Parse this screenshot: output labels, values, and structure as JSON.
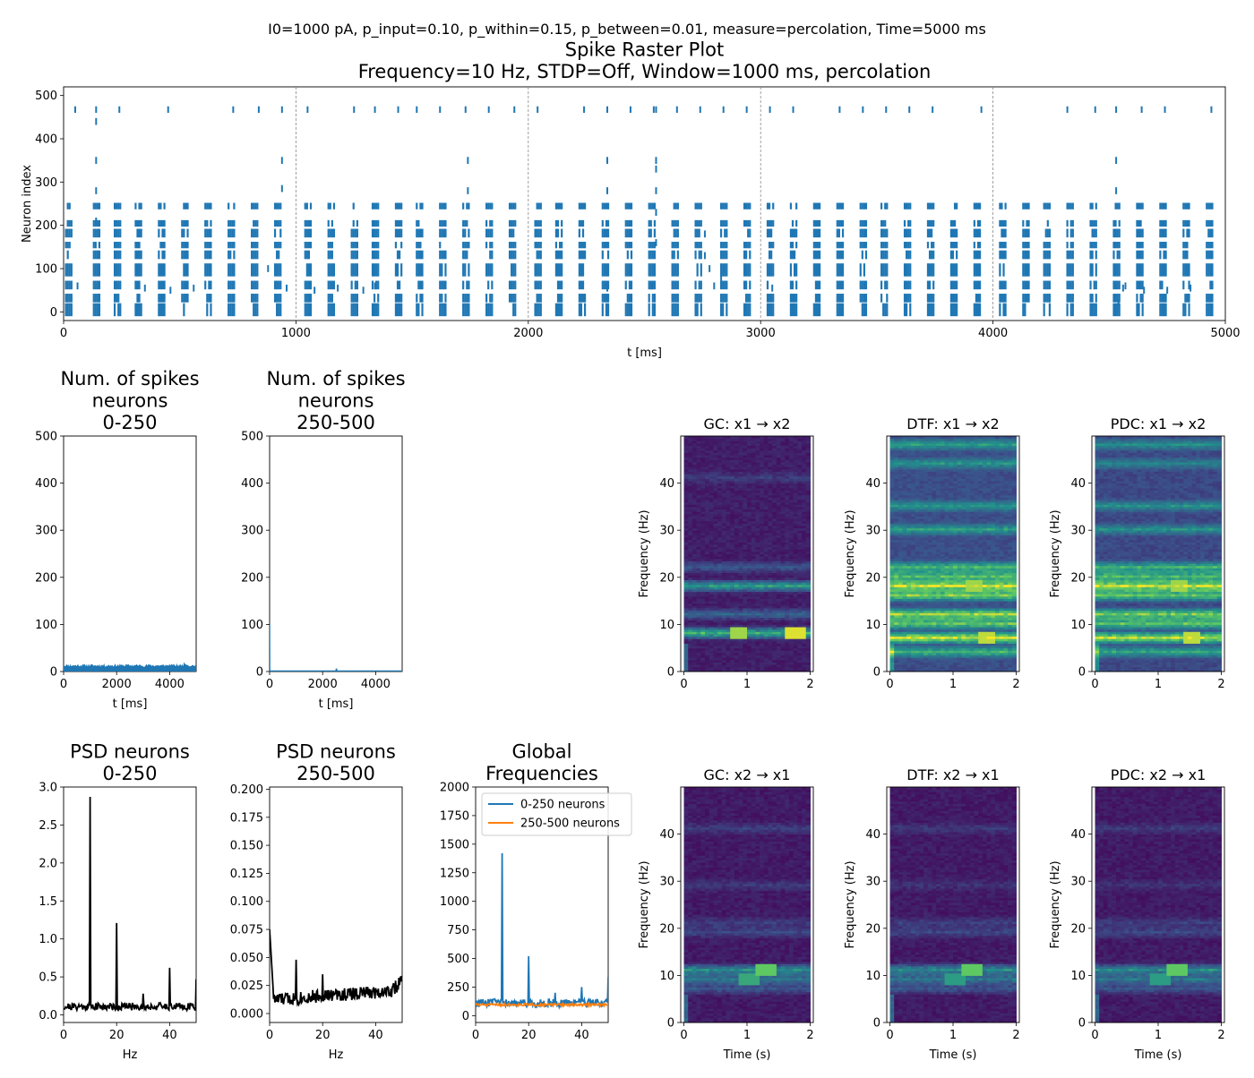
{
  "figure": {
    "suptitle": "I0=1000 pA, p_input=0.10, p_within=0.15, p_between=0.01, measure=percolation, Time=5000 ms"
  },
  "colors": {
    "blue": "#1f77b4",
    "orange": "#ff7f0e",
    "black": "#000000",
    "viridis": [
      "#440154",
      "#3b528b",
      "#21918c",
      "#5ec962",
      "#fde725"
    ]
  },
  "chart_data": [
    {
      "id": "raster",
      "type": "scatter",
      "title_line1": "Spike Raster Plot",
      "title_line2": "Frequency=10 Hz, STDP=Off, Window=1000 ms, percolation",
      "xlabel": "t [ms]",
      "ylabel": "Neuron index",
      "xlim": [
        0,
        5000
      ],
      "ylim": [
        -20,
        520
      ],
      "xticks": [
        0,
        1000,
        2000,
        3000,
        4000,
        5000
      ],
      "yticks": [
        0,
        100,
        200,
        300,
        400,
        500
      ],
      "vlines": [
        1000,
        2000,
        3000,
        4000
      ],
      "burst_times": [
        10,
        130,
        220,
        310,
        410,
        510,
        610,
        710,
        810,
        910,
        1040,
        1140,
        1240,
        1330,
        1430,
        1520,
        1620,
        1720,
        1820,
        1920,
        2030,
        2120,
        2220,
        2320,
        2420,
        2520,
        2620,
        2720,
        2830,
        2930,
        3030,
        3130,
        3230,
        3330,
        3430,
        3520,
        3620,
        3720,
        3820,
        3920,
        4030,
        4130,
        4220,
        4320,
        4420,
        4520,
        4620,
        4720,
        4820,
        4920
      ],
      "burst_ranges": [
        [
          -10,
          20
        ],
        [
          22,
          42
        ],
        [
          52,
          72
        ],
        [
          82,
          112
        ],
        [
          122,
          142
        ],
        [
          147,
          162
        ],
        [
          172,
          192
        ],
        [
          197,
          212
        ],
        [
          237,
          252
        ]
      ],
      "high_neuron_times": [
        50,
        140,
        240,
        450,
        730,
        840,
        940,
        1050,
        1250,
        1340,
        1440,
        1520,
        1620,
        1730,
        1830,
        1940,
        2040,
        2240,
        2340,
        2440,
        2540,
        2550,
        2640,
        2740,
        2840,
        2940,
        3040,
        3140,
        3340,
        3440,
        3540,
        3640,
        3740,
        3950,
        4320,
        4440,
        4530,
        4640,
        4740,
        4940
      ],
      "other_spikes": [
        [
          140,
          440
        ],
        [
          140,
          350
        ],
        [
          140,
          280
        ],
        [
          140,
          210
        ],
        [
          940,
          350
        ],
        [
          940,
          285
        ],
        [
          1740,
          350
        ],
        [
          1740,
          280
        ],
        [
          2340,
          350
        ],
        [
          2340,
          280
        ],
        [
          2550,
          350
        ],
        [
          2550,
          330
        ],
        [
          2550,
          280
        ],
        [
          2550,
          230
        ],
        [
          2550,
          160
        ],
        [
          4530,
          350
        ],
        [
          4530,
          280
        ],
        [
          60,
          60
        ],
        [
          350,
          55
        ],
        [
          460,
          50
        ],
        [
          560,
          55
        ],
        [
          880,
          100
        ],
        [
          960,
          55
        ],
        [
          1080,
          50
        ],
        [
          1180,
          55
        ],
        [
          1240,
          95
        ],
        [
          1290,
          50
        ],
        [
          1340,
          60
        ],
        [
          2340,
          100
        ],
        [
          2340,
          55
        ],
        [
          2530,
          60
        ],
        [
          2760,
          180
        ],
        [
          2760,
          130
        ],
        [
          2780,
          100
        ],
        [
          2800,
          60
        ],
        [
          2830,
          75
        ],
        [
          2840,
          100
        ],
        [
          3050,
          55
        ],
        [
          4540,
          20
        ],
        [
          4560,
          55
        ],
        [
          4570,
          60
        ],
        [
          4650,
          50
        ],
        [
          4750,
          50
        ],
        [
          4850,
          55
        ]
      ]
    },
    {
      "id": "spikes_0_250",
      "type": "area",
      "title_line1": "Num. of spikes",
      "title_line2": "neurons",
      "title_line3": "0-250",
      "xlabel": "t [ms]",
      "ylabel": "",
      "xlim": [
        0,
        5000
      ],
      "ylim": [
        0,
        500
      ],
      "xticks": [
        0,
        2000,
        4000
      ],
      "yticks": [
        0,
        100,
        200,
        300,
        400,
        500
      ],
      "baseline": 12,
      "amplitude": 3
    },
    {
      "id": "spikes_250_500",
      "type": "line",
      "title_line1": "Num. of spikes",
      "title_line2": "neurons",
      "title_line3": "250-500",
      "xlabel": "t [ms]",
      "ylabel": "",
      "xlim": [
        0,
        5000
      ],
      "ylim": [
        0,
        500
      ],
      "xticks": [
        0,
        2000,
        4000
      ],
      "yticks": [
        0,
        100,
        200,
        300,
        400,
        500
      ],
      "x": [
        0,
        5,
        10,
        2500,
        2520,
        2540,
        5000
      ],
      "y": [
        100,
        2,
        1,
        1,
        6,
        1,
        1
      ]
    },
    {
      "id": "psd_0_250",
      "type": "line",
      "title_line1": "PSD neurons",
      "title_line2": "0-250",
      "xlabel": "Hz",
      "ylabel": "",
      "xlim": [
        0,
        50
      ],
      "ylim": [
        -0.1,
        3.0
      ],
      "xticks": [
        0,
        20,
        40
      ],
      "yticks": [
        0.0,
        0.5,
        1.0,
        1.5,
        2.0,
        2.5,
        3.0
      ],
      "ytick_labels": [
        "0.0",
        "0.5",
        "1.0",
        "1.5",
        "2.0",
        "2.5",
        "3.0"
      ],
      "base": 0.11,
      "noise": 0.05,
      "peaks": [
        [
          10,
          2.87
        ],
        [
          20,
          1.21
        ],
        [
          30,
          0.28
        ],
        [
          40,
          0.62
        ],
        [
          50,
          0.47
        ]
      ]
    },
    {
      "id": "psd_250_500",
      "type": "line",
      "title_line1": "PSD neurons",
      "title_line2": "250-500",
      "xlabel": "Hz",
      "ylabel": "",
      "xlim": [
        0,
        50
      ],
      "ylim": [
        -0.008,
        0.202
      ],
      "xticks": [
        0,
        20,
        40
      ],
      "yticks": [
        0.0,
        0.025,
        0.05,
        0.075,
        0.1,
        0.125,
        0.15,
        0.175,
        0.2
      ],
      "ytick_labels": [
        "0.000",
        "0.025",
        "0.050",
        "0.075",
        "0.100",
        "0.125",
        "0.150",
        "0.175",
        "0.200"
      ],
      "start_value": 0.075,
      "noise": 0.006,
      "peaks": [
        [
          10,
          0.048
        ],
        [
          20,
          0.035
        ]
      ]
    },
    {
      "id": "global_freq",
      "type": "line",
      "title_line1": "Global",
      "title_line2": "Frequencies",
      "xlabel": "",
      "ylabel": "",
      "xlim": [
        0,
        50
      ],
      "ylim": [
        -60,
        2000
      ],
      "xticks": [
        0,
        20,
        40
      ],
      "yticks": [
        0,
        250,
        500,
        750,
        1000,
        1250,
        1500,
        1750,
        2000
      ],
      "legend_position": "upper right",
      "series": [
        {
          "name": "0-250 neurons",
          "base": 110,
          "noise": 35,
          "peaks": [
            [
              10,
              1420
            ],
            [
              20,
              520
            ],
            [
              30,
              200
            ],
            [
              40,
              250
            ],
            [
              50,
              340
            ]
          ]
        },
        {
          "name": "250-500 neurons",
          "base": 95,
          "noise": 10,
          "peaks": []
        }
      ]
    },
    {
      "id": "gc_x1_x2",
      "type": "heatmap",
      "title": "GC: x1 → x2",
      "ylabel": "Frequency (Hz)",
      "xlabel": "",
      "xlim": [
        -0.05,
        2.05
      ],
      "ylim": [
        0,
        50
      ],
      "xticks": [
        0,
        1,
        2
      ],
      "yticks": [
        0,
        10,
        20,
        30,
        40
      ],
      "base": 0.05,
      "bands": [
        [
          8,
          0.6
        ],
        [
          18,
          0.5
        ],
        [
          12,
          0.25
        ],
        [
          22,
          0.2
        ],
        [
          41,
          0.1
        ]
      ],
      "hotspots": [
        [
          8,
          0.85,
          0.85
        ],
        [
          8,
          1.75,
          0.95
        ]
      ]
    },
    {
      "id": "dtf_x1_x2",
      "type": "heatmap",
      "title": "DTF: x1 → x2",
      "ylabel": "Frequency (Hz)",
      "xlabel": "",
      "xlim": [
        -0.05,
        2.05
      ],
      "ylim": [
        0,
        50
      ],
      "xticks": [
        0,
        1,
        2
      ],
      "yticks": [
        0,
        10,
        20,
        30,
        40
      ],
      "base": 0.2,
      "bands": [
        [
          4,
          0.45
        ],
        [
          7,
          0.75
        ],
        [
          10,
          0.55
        ],
        [
          12,
          0.65
        ],
        [
          16,
          0.6
        ],
        [
          18,
          0.75
        ],
        [
          20,
          0.5
        ],
        [
          22,
          0.45
        ],
        [
          30,
          0.35
        ],
        [
          35,
          0.3
        ],
        [
          44,
          0.3
        ],
        [
          48,
          0.35
        ]
      ],
      "hotspots": [
        [
          7,
          1.5,
          0.9
        ],
        [
          18,
          1.3,
          0.85
        ]
      ]
    },
    {
      "id": "pdc_x1_x2",
      "type": "heatmap",
      "title": "PDC: x1 → x2",
      "ylabel": "Frequency (Hz)",
      "xlabel": "",
      "xlim": [
        -0.05,
        2.05
      ],
      "ylim": [
        0,
        50
      ],
      "xticks": [
        0,
        1,
        2
      ],
      "yticks": [
        0,
        10,
        20,
        30,
        40
      ],
      "base": 0.18,
      "bands": [
        [
          4,
          0.4
        ],
        [
          7,
          0.75
        ],
        [
          10,
          0.55
        ],
        [
          12,
          0.6
        ],
        [
          16,
          0.55
        ],
        [
          18,
          0.75
        ],
        [
          20,
          0.5
        ],
        [
          22,
          0.45
        ],
        [
          30,
          0.3
        ],
        [
          35,
          0.3
        ],
        [
          44,
          0.25
        ],
        [
          48,
          0.3
        ]
      ],
      "hotspots": [
        [
          7,
          1.5,
          0.9
        ],
        [
          18,
          1.3,
          0.85
        ]
      ]
    },
    {
      "id": "gc_x2_x1",
      "type": "heatmap",
      "title": "GC: x2 → x1",
      "ylabel": "Frequency (Hz)",
      "xlabel": "Time (s)",
      "xlim": [
        -0.05,
        2.05
      ],
      "ylim": [
        0,
        50
      ],
      "xticks": [
        0,
        1,
        2
      ],
      "yticks": [
        0,
        10,
        20,
        30,
        40
      ],
      "base": 0.04,
      "bands": [
        [
          11,
          0.45
        ],
        [
          9,
          0.35
        ],
        [
          7,
          0.2
        ],
        [
          19,
          0.15
        ],
        [
          21,
          0.12
        ],
        [
          41,
          0.12
        ],
        [
          29,
          0.1
        ]
      ],
      "hotspots": [
        [
          11,
          1.25,
          0.75
        ],
        [
          9,
          1.0,
          0.6
        ]
      ]
    },
    {
      "id": "dtf_x2_x1",
      "type": "heatmap",
      "title": "DTF: x2 → x1",
      "ylabel": "Frequency (Hz)",
      "xlabel": "Time (s)",
      "xlim": [
        -0.05,
        2.05
      ],
      "ylim": [
        0,
        50
      ],
      "xticks": [
        0,
        1,
        2
      ],
      "yticks": [
        0,
        10,
        20,
        30,
        40
      ],
      "base": 0.04,
      "bands": [
        [
          11,
          0.45
        ],
        [
          9,
          0.35
        ],
        [
          7,
          0.2
        ],
        [
          19,
          0.15
        ],
        [
          21,
          0.12
        ],
        [
          41,
          0.1
        ],
        [
          29,
          0.08
        ]
      ],
      "hotspots": [
        [
          11,
          1.25,
          0.75
        ],
        [
          9,
          1.0,
          0.55
        ]
      ]
    },
    {
      "id": "pdc_x2_x1",
      "type": "heatmap",
      "title": "PDC: x2 → x1",
      "ylabel": "Frequency (Hz)",
      "xlabel": "Time (s)",
      "xlim": [
        -0.05,
        2.05
      ],
      "ylim": [
        0,
        50
      ],
      "xticks": [
        0,
        1,
        2
      ],
      "yticks": [
        0,
        10,
        20,
        30,
        40
      ],
      "base": 0.04,
      "bands": [
        [
          11,
          0.45
        ],
        [
          9,
          0.35
        ],
        [
          7,
          0.2
        ],
        [
          19,
          0.15
        ],
        [
          21,
          0.12
        ],
        [
          41,
          0.1
        ],
        [
          29,
          0.08
        ]
      ],
      "hotspots": [
        [
          11,
          1.25,
          0.75
        ],
        [
          9,
          1.0,
          0.55
        ]
      ]
    }
  ]
}
